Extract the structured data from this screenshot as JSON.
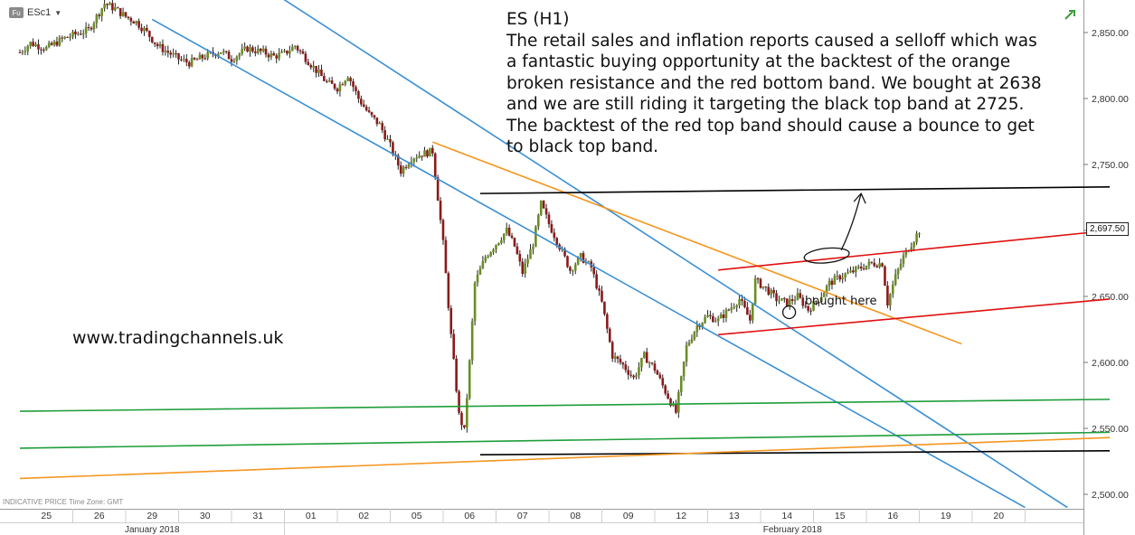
{
  "symbol": {
    "badge": "Fu",
    "name": "ESc1"
  },
  "annotation": {
    "title": "ES (H1)",
    "text": "The retail sales and inflation reports caused a selloff which was a fantastic buying opportunity at the backtest of the orange broken resistance and the red bottom band. We bought at 2638 and we are still riding it targeting the black top band at 2725. The backtest of the red top band should cause a bounce to get to black top band."
  },
  "website": "www.tradingchannels.uk",
  "bought_label": "bought here",
  "footer_note": "INDICATIVE PRICE   Time Zone: GMT",
  "last_price_badge": "2,697.50",
  "colors": {
    "candle_up": "#6b8e23",
    "candle_down": "#8b1a1a",
    "blue": "#3a8fd4",
    "orange": "#f5961f",
    "red": "#e01010",
    "green": "#1e9e3a",
    "black": "#000000"
  },
  "chart_data": {
    "type": "candlestick",
    "title": "",
    "xlabel": "",
    "ylabel": "",
    "ylim": [
      2490,
      2880
    ],
    "yticks": [
      2500,
      2550,
      2600,
      2650,
      2700,
      2750,
      2800,
      2850
    ],
    "ytick_labels": [
      "2,500.00",
      "2,550.00",
      "2,600.00",
      "2,650.00",
      "2,700.00",
      "2,750.00",
      "2,800.00",
      "2,850.00"
    ],
    "x_days": [
      "25",
      "26",
      "29",
      "30",
      "31",
      "01",
      "02",
      "05",
      "06",
      "07",
      "08",
      "09",
      "12",
      "13",
      "14",
      "15",
      "16",
      "19",
      "20"
    ],
    "x_months": [
      "January 2018",
      "February 2018"
    ],
    "close_path": [
      [
        0,
        2835
      ],
      [
        0.2,
        2842
      ],
      [
        0.5,
        2838
      ],
      [
        0.8,
        2845
      ],
      [
        1.0,
        2848
      ],
      [
        1.3,
        2852
      ],
      [
        1.6,
        2872
      ],
      [
        1.8,
        2868
      ],
      [
        2.0,
        2862
      ],
      [
        2.2,
        2858
      ],
      [
        2.4,
        2850
      ],
      [
        2.6,
        2840
      ],
      [
        2.8,
        2835
      ],
      [
        3.0,
        2830
      ],
      [
        3.2,
        2827
      ],
      [
        3.5,
        2832
      ],
      [
        3.8,
        2836
      ],
      [
        4.0,
        2830
      ],
      [
        4.3,
        2838
      ],
      [
        4.6,
        2835
      ],
      [
        4.8,
        2832
      ],
      [
        5.0,
        2834
      ],
      [
        5.2,
        2840
      ],
      [
        5.5,
        2826
      ],
      [
        5.8,
        2812
      ],
      [
        6.0,
        2808
      ],
      [
        6.2,
        2818
      ],
      [
        6.4,
        2800
      ],
      [
        6.6,
        2788
      ],
      [
        6.8,
        2780
      ],
      [
        7.0,
        2764
      ],
      [
        7.2,
        2745
      ],
      [
        7.4,
        2755
      ],
      [
        7.6,
        2758
      ],
      [
        7.8,
        2760
      ],
      [
        8.0,
        2690
      ],
      [
        8.15,
        2620
      ],
      [
        8.3,
        2560
      ],
      [
        8.4,
        2548
      ],
      [
        8.5,
        2600
      ],
      [
        8.6,
        2660
      ],
      [
        8.8,
        2680
      ],
      [
        9.0,
        2690
      ],
      [
        9.2,
        2700
      ],
      [
        9.35,
        2688
      ],
      [
        9.5,
        2668
      ],
      [
        9.7,
        2690
      ],
      [
        9.85,
        2720
      ],
      [
        10.0,
        2705
      ],
      [
        10.2,
        2688
      ],
      [
        10.4,
        2670
      ],
      [
        10.6,
        2680
      ],
      [
        10.8,
        2672
      ],
      [
        11.0,
        2645
      ],
      [
        11.2,
        2605
      ],
      [
        11.4,
        2598
      ],
      [
        11.6,
        2588
      ],
      [
        11.8,
        2605
      ],
      [
        12.0,
        2595
      ],
      [
        12.2,
        2578
      ],
      [
        12.4,
        2562
      ],
      [
        12.6,
        2612
      ],
      [
        12.8,
        2628
      ],
      [
        13.0,
        2635
      ],
      [
        13.2,
        2632
      ],
      [
        13.4,
        2640
      ],
      [
        13.6,
        2648
      ],
      [
        13.8,
        2632
      ],
      [
        13.9,
        2662
      ],
      [
        14.1,
        2656
      ],
      [
        14.3,
        2648
      ],
      [
        14.5,
        2645
      ],
      [
        14.7,
        2650
      ],
      [
        14.9,
        2640
      ],
      [
        15.1,
        2648
      ],
      [
        15.3,
        2660
      ],
      [
        15.5,
        2665
      ],
      [
        15.7,
        2668
      ],
      [
        15.9,
        2672
      ],
      [
        16.1,
        2675
      ],
      [
        16.3,
        2675
      ],
      [
        16.4,
        2645
      ],
      [
        16.55,
        2665
      ],
      [
        16.7,
        2680
      ],
      [
        16.85,
        2690
      ],
      [
        17.0,
        2700
      ]
    ],
    "trendlines": [
      {
        "color": "blue",
        "from": [
          2.5,
          2860
        ],
        "to": [
          19.0,
          2490
        ]
      },
      {
        "color": "blue",
        "from": [
          4.8,
          2880
        ],
        "to": [
          19.8,
          2490
        ]
      },
      {
        "color": "orange",
        "from": [
          7.8,
          2767
        ],
        "to": [
          17.8,
          2614
        ]
      },
      {
        "color": "black",
        "from": [
          8.7,
          2728
        ],
        "to": [
          20.6,
          2733
        ]
      },
      {
        "color": "black",
        "from": [
          8.7,
          2530
        ],
        "to": [
          20.6,
          2533
        ]
      },
      {
        "color": "red",
        "from": [
          13.2,
          2670
        ],
        "to": [
          20.6,
          2700
        ]
      },
      {
        "color": "red",
        "from": [
          13.2,
          2621
        ],
        "to": [
          20.6,
          2648
        ]
      },
      {
        "color": "green",
        "from": [
          0,
          2563
        ],
        "to": [
          20.6,
          2572
        ]
      },
      {
        "color": "green",
        "from": [
          0,
          2535
        ],
        "to": [
          20.6,
          2547
        ]
      },
      {
        "color": "orange",
        "from": [
          0,
          2512
        ],
        "to": [
          20.6,
          2543
        ]
      }
    ]
  }
}
